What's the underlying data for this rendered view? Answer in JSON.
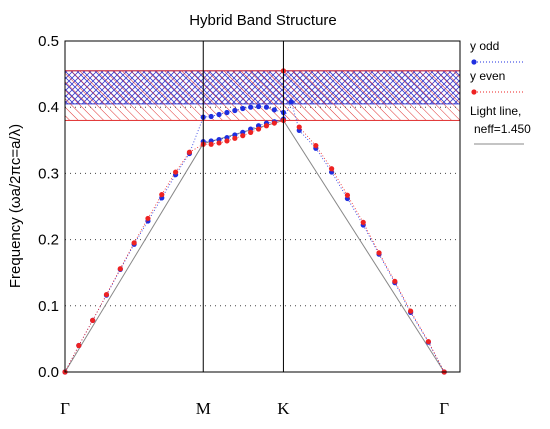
{
  "chart_data": {
    "type": "scatter",
    "title": "Hybrid Band Structure",
    "ylabel": "Frequency (ωa/2πc=a/λ)",
    "ylim": [
      0,
      0.5
    ],
    "yticks": [
      "0.0",
      "0.1",
      "0.2",
      "0.3",
      "0.4",
      "0.5"
    ],
    "xlim": [
      0,
      1
    ],
    "xticks": [
      {
        "label": "Γ",
        "x": 0
      },
      {
        "label": "M",
        "x": 0.35
      },
      {
        "label": "K",
        "x": 0.553
      },
      {
        "label": "Γ",
        "x": 0.96
      }
    ],
    "grid": "dotted horizontal",
    "legend_position": "right",
    "bands": [
      {
        "name": "y odd gap",
        "y0": 0.405,
        "y1": 0.455,
        "color": "#3a3acc"
      },
      {
        "name": "y even gap",
        "y0": 0.38,
        "y1": 0.455,
        "color": "#e03030"
      }
    ],
    "series": [
      {
        "name": "y odd",
        "color": "#1f2fe0",
        "points": [
          [
            0,
            0
          ],
          [
            0.035,
            0.04
          ],
          [
            0.07,
            0.078
          ],
          [
            0.105,
            0.116
          ],
          [
            0.14,
            0.155
          ],
          [
            0.175,
            0.193
          ],
          [
            0.21,
            0.228
          ],
          [
            0.245,
            0.263
          ],
          [
            0.28,
            0.298
          ],
          [
            0.315,
            0.33
          ],
          [
            0.35,
            0.385
          ],
          [
            0.37,
            0.386
          ],
          [
            0.39,
            0.389
          ],
          [
            0.41,
            0.392
          ],
          [
            0.43,
            0.395
          ],
          [
            0.45,
            0.398
          ],
          [
            0.47,
            0.4
          ],
          [
            0.49,
            0.401
          ],
          [
            0.51,
            0.4
          ],
          [
            0.53,
            0.396
          ],
          [
            0.553,
            0.392
          ],
          [
            0.35,
            0.348
          ],
          [
            0.37,
            0.349
          ],
          [
            0.39,
            0.351
          ],
          [
            0.41,
            0.354
          ],
          [
            0.43,
            0.358
          ],
          [
            0.45,
            0.362
          ],
          [
            0.47,
            0.367
          ],
          [
            0.49,
            0.372
          ],
          [
            0.51,
            0.376
          ],
          [
            0.53,
            0.378
          ],
          [
            0.553,
            0.382
          ],
          [
            0.573,
            0.408
          ],
          [
            0.593,
            0.365
          ],
          [
            0.635,
            0.338
          ],
          [
            0.675,
            0.302
          ],
          [
            0.715,
            0.262
          ],
          [
            0.755,
            0.222
          ],
          [
            0.795,
            0.178
          ],
          [
            0.835,
            0.135
          ],
          [
            0.875,
            0.09
          ],
          [
            0.92,
            0.045
          ],
          [
            0.96,
            0
          ]
        ]
      },
      {
        "name": "y even",
        "color": "#ee2222",
        "points": [
          [
            0,
            0
          ],
          [
            0.035,
            0.04
          ],
          [
            0.07,
            0.078
          ],
          [
            0.105,
            0.117
          ],
          [
            0.14,
            0.156
          ],
          [
            0.175,
            0.195
          ],
          [
            0.21,
            0.232
          ],
          [
            0.245,
            0.268
          ],
          [
            0.28,
            0.302
          ],
          [
            0.315,
            0.332
          ],
          [
            0.35,
            0.344
          ],
          [
            0.37,
            0.344
          ],
          [
            0.39,
            0.346
          ],
          [
            0.41,
            0.349
          ],
          [
            0.43,
            0.353
          ],
          [
            0.45,
            0.357
          ],
          [
            0.47,
            0.362
          ],
          [
            0.49,
            0.367
          ],
          [
            0.51,
            0.372
          ],
          [
            0.53,
            0.376
          ],
          [
            0.553,
            0.38
          ],
          [
            0.553,
            0.455
          ],
          [
            0.593,
            0.37
          ],
          [
            0.635,
            0.342
          ],
          [
            0.675,
            0.307
          ],
          [
            0.715,
            0.267
          ],
          [
            0.755,
            0.226
          ],
          [
            0.795,
            0.18
          ],
          [
            0.835,
            0.137
          ],
          [
            0.875,
            0.092
          ],
          [
            0.92,
            0.046
          ],
          [
            0.96,
            0
          ]
        ]
      }
    ],
    "light_line": {
      "name": "Light line,\nneff=1.450",
      "label_line1": "Light line,",
      "label_line2": "neff=1.450",
      "color": "#888888",
      "points": [
        [
          0,
          0
        ],
        [
          0.35,
          0.345
        ],
        [
          0.553,
          0.38
        ],
        [
          0.96,
          0
        ]
      ]
    }
  }
}
